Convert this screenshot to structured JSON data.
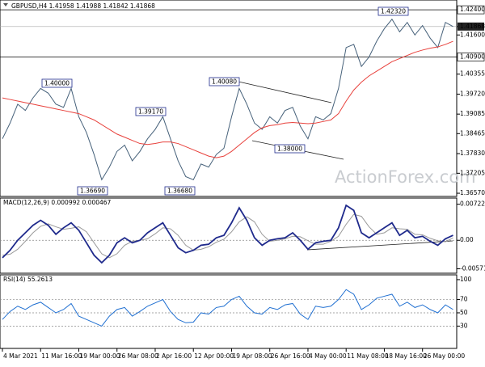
{
  "chart_data": [
    {
      "type": "line",
      "title": "GBPUSD,H4  1.41958 1.41988 1.41842 1.41868",
      "watermark": "ActionForex.com",
      "xlim": [
        0,
        59
      ],
      "xticks": [
        {
          "value": 0,
          "label": "4 Mar 2021"
        },
        {
          "value": 5,
          "label": "11 Mar 16:00"
        },
        {
          "value": 10,
          "label": "19 Mar 00:00"
        },
        {
          "value": 15,
          "label": "26 Mar 08:00"
        },
        {
          "value": 20,
          "label": "2 Apr 16:00"
        },
        {
          "value": 25,
          "label": "12 Apr 00:00"
        },
        {
          "value": 30,
          "label": "19 Apr 08:00"
        },
        {
          "value": 35,
          "label": "26 Apr 16:00"
        },
        {
          "value": 40,
          "label": "4 May 00:00"
        },
        {
          "value": 45,
          "label": "11 May 08:00"
        },
        {
          "value": 50,
          "label": "18 May 16:00"
        },
        {
          "value": 55,
          "label": "26 May 00:00"
        }
      ],
      "ylim": [
        1.3652,
        1.4266
      ],
      "yticks": [
        {
          "value": 1.424,
          "label": "1.42400"
        },
        {
          "value": 1.41868,
          "label": "1.41868"
        },
        {
          "value": 1.416,
          "label": "1.41600"
        },
        {
          "value": 1.409,
          "label": "1.40900"
        },
        {
          "value": 1.40355,
          "label": "1.40355"
        },
        {
          "value": 1.3972,
          "label": "1.39720"
        },
        {
          "value": 1.39085,
          "label": "1.39085"
        },
        {
          "value": 1.38465,
          "label": "1.38465"
        },
        {
          "value": 1.3783,
          "label": "1.37830"
        },
        {
          "value": 1.37205,
          "label": "1.37205"
        },
        {
          "value": 1.3657,
          "label": "1.36570"
        }
      ],
      "levels": [
        1.424,
        1.409
      ],
      "annotations": [
        "1.40000",
        "1.39170",
        "1.40080",
        "1.42320",
        "1.38000",
        "1.36690",
        "1.36680"
      ],
      "series": [
        {
          "color": "#46617a",
          "values": [
            1.383,
            1.388,
            1.394,
            1.392,
            1.396,
            1.399,
            1.3975,
            1.394,
            1.393,
            1.399,
            1.39,
            1.385,
            1.378,
            1.37,
            1.374,
            1.379,
            1.381,
            1.376,
            1.379,
            1.383,
            1.386,
            1.39,
            1.383,
            1.376,
            1.371,
            1.37,
            1.375,
            1.374,
            1.378,
            1.38,
            1.39,
            1.399,
            1.394,
            1.388,
            1.386,
            1.39,
            1.388,
            1.392,
            1.393,
            1.387,
            1.383,
            1.39,
            1.389,
            1.391,
            1.399,
            1.412,
            1.413,
            1.406,
            1.409,
            1.414,
            1.418,
            1.421,
            1.417,
            1.42,
            1.416,
            1.419,
            1.415,
            1.412,
            1.42,
            1.41868
          ]
        },
        {
          "color": "#e8413c",
          "values": [
            1.396,
            1.3955,
            1.395,
            1.3945,
            1.394,
            1.3935,
            1.393,
            1.3925,
            1.392,
            1.3915,
            1.391,
            1.39,
            1.389,
            1.3875,
            1.386,
            1.3845,
            1.3835,
            1.3825,
            1.3815,
            1.3812,
            1.3815,
            1.382,
            1.382,
            1.3815,
            1.3805,
            1.3795,
            1.3785,
            1.3775,
            1.377,
            1.3775,
            1.379,
            1.381,
            1.383,
            1.385,
            1.3865,
            1.3872,
            1.3875,
            1.388,
            1.3882,
            1.388,
            1.3878,
            1.388,
            1.3885,
            1.389,
            1.391,
            1.395,
            1.3985,
            1.401,
            1.403,
            1.4045,
            1.406,
            1.4075,
            1.4085,
            1.4095,
            1.4105,
            1.4112,
            1.4118,
            1.4122,
            1.413,
            1.414
          ]
        }
      ]
    },
    {
      "type": "line",
      "title": "MACD(12,26,9) 0.000992 0.000467",
      "ylim": [
        -0.00644,
        0.0083
      ],
      "yticks": [
        0.007227,
        {
          "value": 0,
          "label": "0.00"
        },
        -0.005714
      ],
      "zero_line": true,
      "series": [
        {
          "color": "#9a9a9a",
          "values": [
            -0.003,
            -0.0028,
            -0.0018,
            -0.0002,
            0.0015,
            0.0028,
            0.0033,
            0.0027,
            0.0022,
            0.0024,
            0.0027,
            0.0017,
            -0.0005,
            -0.0027,
            -0.0035,
            -0.0027,
            -0.001,
            -0.0002,
            0,
            0.0003,
            0.0013,
            0.0025,
            0.0023,
            0.001,
            -0.001,
            -0.002,
            -0.0018,
            -0.0013,
            -0.0004,
            0.0002,
            0.0017,
            0.0037,
            0.0047,
            0.0037,
            0.0012,
            -0.0002,
            0,
            0.0003,
            0.0008,
            0.0007,
            -0.0001,
            -0.0008,
            -0.0008,
            -0.0002,
            0.0008,
            0.0032,
            0.0052,
            0.0048,
            0.0027,
            0.0012,
            0.0015,
            0.0025,
            0.0023,
            0.0022,
            0.0012,
            0.0011,
            0.0004,
            -0.0001,
            -0.0003,
            0.0005
          ]
        },
        {
          "color": "#1f2a8c",
          "values": [
            -0.0035,
            -0.002,
            0,
            0.0015,
            0.003,
            0.004,
            0.003,
            0.0012,
            0.0025,
            0.0035,
            0.002,
            -0.0005,
            -0.003,
            -0.0045,
            -0.003,
            -0.0005,
            0.0005,
            -0.0005,
            0,
            0.0015,
            0.0025,
            0.0035,
            0.001,
            -0.0015,
            -0.0025,
            -0.002,
            -0.001,
            -0.0008,
            0.0005,
            0.001,
            0.0035,
            0.0065,
            0.004,
            0.0005,
            -0.001,
            0,
            0.0003,
            0.0005,
            0.0015,
            0,
            -0.0018,
            -0.0005,
            -0.0002,
            0,
            0.0025,
            0.007,
            0.006,
            0.0015,
            0.0005,
            0.0015,
            0.0025,
            0.0035,
            0.001,
            0.002,
            0.0005,
            0.0008,
            -0.0002,
            -0.001,
            0.0003,
            0.001
          ]
        }
      ]
    },
    {
      "type": "line",
      "title": "RSI(14) 55.2613",
      "ylim": [
        -2.4,
        106
      ],
      "yticks": [
        100,
        70,
        50,
        30
      ],
      "dotted_ticks": [
        70,
        50,
        30
      ],
      "series": [
        {
          "color": "#1f6fd1",
          "values": [
            40,
            52,
            60,
            55,
            62,
            66,
            58,
            50,
            55,
            64,
            45,
            40,
            35,
            30,
            45,
            55,
            58,
            45,
            52,
            60,
            65,
            70,
            52,
            40,
            35,
            36,
            50,
            48,
            58,
            60,
            70,
            75,
            60,
            50,
            48,
            58,
            55,
            62,
            64,
            48,
            40,
            60,
            58,
            60,
            70,
            85,
            78,
            55,
            62,
            72,
            75,
            78,
            60,
            66,
            58,
            62,
            55,
            50,
            62,
            55
          ]
        }
      ]
    }
  ]
}
